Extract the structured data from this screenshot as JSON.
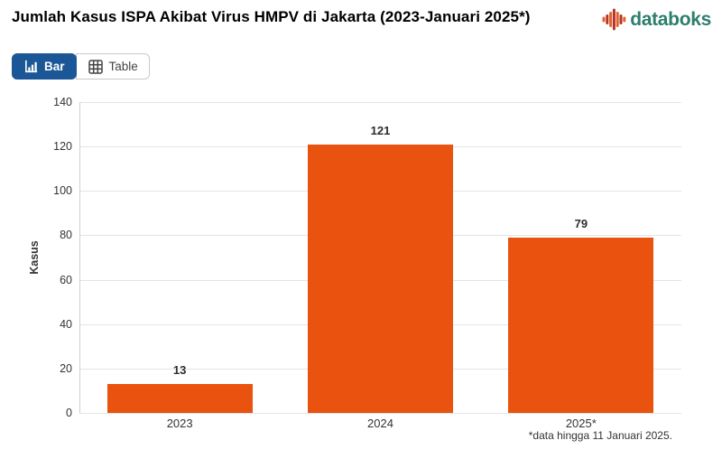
{
  "header": {
    "title": "Jumlah Kasus ISPA Akibat Virus HMPV di Jakarta (2023-Januari 2025*)",
    "logo_text": "databoks"
  },
  "toolbar": {
    "bar_label": "Bar",
    "table_label": "Table"
  },
  "chart_data": {
    "type": "bar",
    "categories": [
      "2023",
      "2024",
      "2025*"
    ],
    "values": [
      13,
      121,
      79
    ],
    "title": "Jumlah Kasus ISPA Akibat Virus HMPV di Jakarta (2023-Januari 2025*)",
    "xlabel": "",
    "ylabel": "Kasus",
    "ylim": [
      0,
      140
    ],
    "ytick_step": 20,
    "grid": true,
    "legend": "none",
    "bar_color": "#E9530F",
    "footnote": "*data hingga 11 Januari 2025."
  },
  "colors": {
    "bar_orange": "#E9530F",
    "active_button_blue": "#1B5796",
    "logo_teal": "#2E7D6F",
    "logo_icon_orange": "#E2622B",
    "logo_icon_red": "#B33527",
    "gridline_gray": "#e3e3e3",
    "text_dark": "#333333"
  },
  "icons": {
    "bar_view": "bar-chart-icon",
    "table_view": "table-grid-icon",
    "logo": "pulse-bars-icon"
  }
}
